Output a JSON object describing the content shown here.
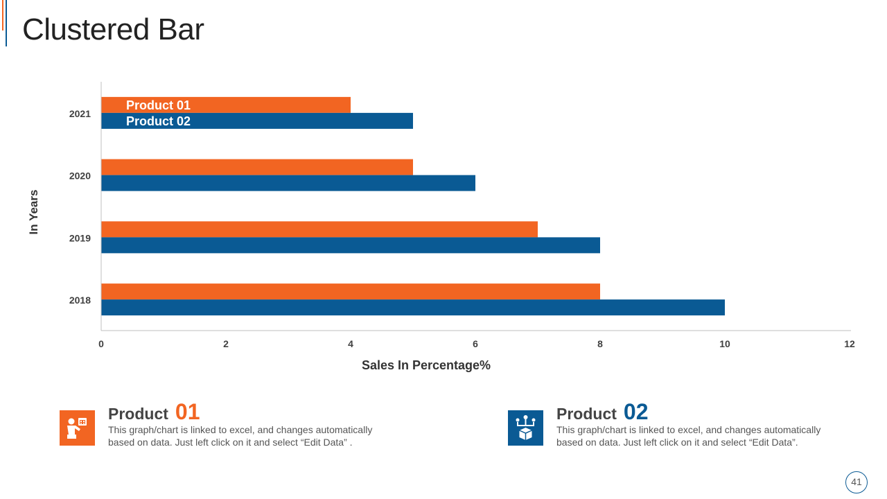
{
  "slide": {
    "title": "Clustered Bar",
    "page_number": "41"
  },
  "colors": {
    "product_01": "#f26522",
    "product_02": "#0a5a94"
  },
  "chart_data": {
    "type": "bar",
    "orientation": "horizontal",
    "categories": [
      "2021",
      "2020",
      "2019",
      "2018"
    ],
    "series": [
      {
        "name": "Product 01",
        "values": [
          4,
          5,
          7,
          8
        ]
      },
      {
        "name": "Product 02",
        "values": [
          5,
          6,
          8,
          10
        ]
      }
    ],
    "xlabel": "Sales In Percentage%",
    "ylabel": "In Years",
    "xlim": [
      0,
      12
    ],
    "xticks": [
      "0",
      "2",
      "4",
      "6",
      "8",
      "10",
      "12"
    ],
    "grid": false,
    "series_labels_on_first_category": true
  },
  "products": [
    {
      "word": "Product",
      "number": "01",
      "icon": "presenter-calendar-icon",
      "description": "This graph/chart is linked to excel, and changes automatically based on data. Just left click on it and select “Edit Data” ."
    },
    {
      "word": "Product",
      "number": "02",
      "icon": "network-box-icon",
      "description": "This graph/chart is linked to excel, and changes automatically based on data. Just left click on it and select “Edit Data”."
    }
  ]
}
